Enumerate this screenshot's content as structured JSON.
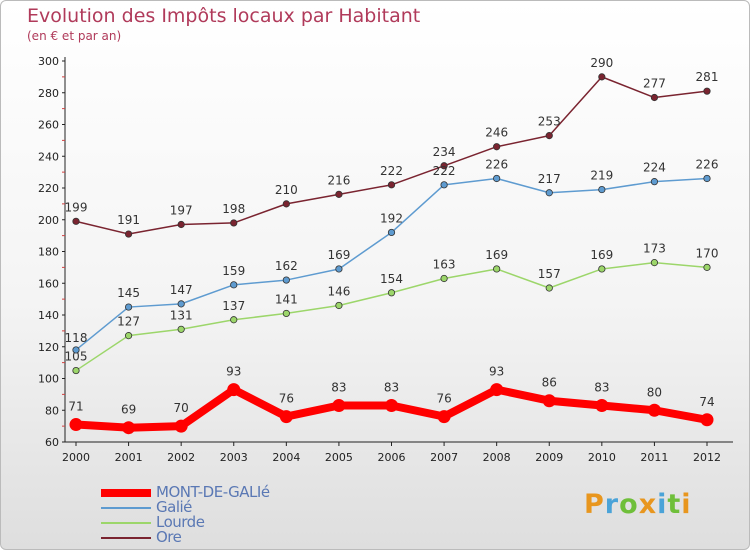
{
  "chart_data": {
    "type": "line",
    "title": "Evolution des Impôts locaux par Habitant",
    "subtitle": "(en € et par an)",
    "xlabel": "",
    "ylabel": "",
    "categories": [
      "2000",
      "2001",
      "2002",
      "2003",
      "2004",
      "2005",
      "2006",
      "2007",
      "2008",
      "2009",
      "2010",
      "2011",
      "2012"
    ],
    "ylim": [
      60,
      300
    ],
    "yticks": [
      60,
      80,
      100,
      120,
      140,
      160,
      180,
      200,
      220,
      240,
      260,
      280,
      300
    ],
    "grid": false,
    "legend_position": "bottom-left",
    "series": [
      {
        "name": "MONT-DE-GALIé",
        "color": "#ff0000",
        "values": [
          71,
          69,
          70,
          93,
          76,
          83,
          83,
          76,
          93,
          86,
          83,
          80,
          74
        ]
      },
      {
        "name": "Galié",
        "color": "#5e9bd0",
        "values": [
          118,
          145,
          147,
          159,
          162,
          169,
          192,
          222,
          226,
          217,
          219,
          224,
          226
        ]
      },
      {
        "name": "Lourde",
        "color": "#9cd66a",
        "values": [
          105,
          127,
          131,
          137,
          141,
          146,
          154,
          163,
          169,
          157,
          169,
          173,
          170
        ]
      },
      {
        "name": "Ore",
        "color": "#7a2430",
        "values": [
          199,
          191,
          197,
          198,
          210,
          216,
          222,
          234,
          246,
          253,
          290,
          277,
          281
        ]
      }
    ]
  },
  "logo": {
    "text": "Proxiti",
    "letters": [
      {
        "ch": "P",
        "color": "#e8961e"
      },
      {
        "ch": "r",
        "color": "#4aa3d8"
      },
      {
        "ch": "o",
        "color": "#6fbf3a"
      },
      {
        "ch": "x",
        "color": "#e8961e"
      },
      {
        "ch": "i",
        "color": "#4aa3d8"
      },
      {
        "ch": "t",
        "color": "#6fbf3a"
      },
      {
        "ch": "i",
        "color": "#e8961e"
      }
    ]
  }
}
